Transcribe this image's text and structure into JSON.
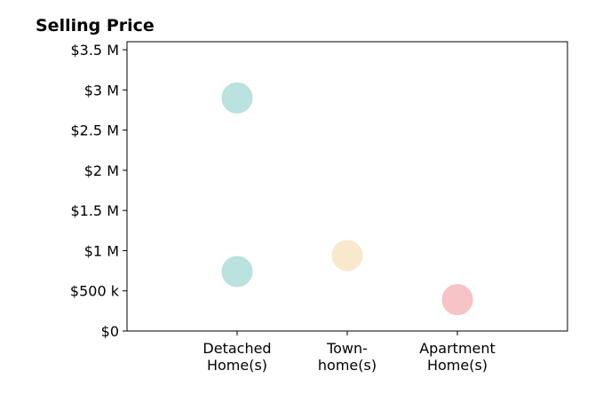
{
  "chart_data": {
    "type": "scatter",
    "title": "Selling Price",
    "xlabel": "",
    "ylabel": "",
    "categories": [
      [
        "Detached",
        "Home(s)"
      ],
      [
        "Town-",
        "home(s)"
      ],
      [
        "Apartment",
        "Home(s)"
      ]
    ],
    "xlim": [
      0,
      4
    ],
    "ylim": [
      0,
      3600000
    ],
    "yticks": [
      0,
      500000,
      1000000,
      1500000,
      2000000,
      2500000,
      3000000,
      3500000
    ],
    "ytick_labels": [
      "$0",
      "$500 k",
      "$1 M",
      "$1.5 M",
      "$2 M",
      "$2.5 M",
      "$3 M",
      "$3.5 M"
    ],
    "grid": false,
    "points": [
      {
        "category": 1,
        "value": 2900000,
        "color": "#b3dfdb"
      },
      {
        "category": 1,
        "value": 740000,
        "color": "#b3dfdb"
      },
      {
        "category": 2,
        "value": 940000,
        "color": "#f7e7c6"
      },
      {
        "category": 3,
        "value": 390000,
        "color": "#f5bcc0"
      }
    ]
  }
}
